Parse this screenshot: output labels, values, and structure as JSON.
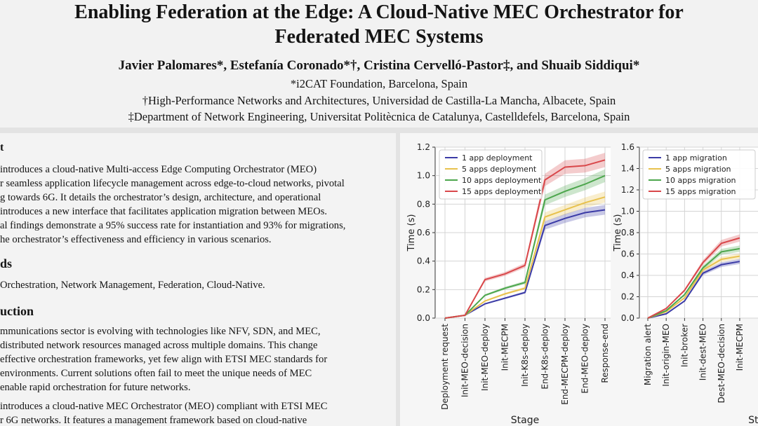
{
  "header": {
    "title_line1": "Enabling Federation at the Edge: A Cloud-Native MEC Orchestrator for",
    "title_line2": "Federated MEC Systems",
    "authors": "Javier Palomares*, Estefanía Coronado*†, Cristina Cervelló-Pastor‡, and Shuaib Siddiqui*",
    "affiliation1": "*i2CAT Foundation, Barcelona, Spain",
    "affiliation2": "†High-Performance Networks and Architectures, Universidad de Castilla-La Mancha, Albacete, Spain",
    "affiliation3": "‡Department of Network Engineering, Universitat Politècnica de Catalunya, Castelldefels, Barcelona, Spain"
  },
  "abstract": {
    "heading_fragment": "t",
    "lines": [
      "introduces a cloud-native Multi-access Edge Computing Orchestrator (MEO)",
      "r seamless application lifecycle management across edge-to-cloud networks, pivotal",
      "g towards 6G. It details the orchestrator’s design, architecture, and operational",
      "introduces a new interface that facilitates application migration between MEOs.",
      "al findings demonstrate a 95% success rate for instantiation and 93% for migrations,",
      "he orchestrator’s effectiveness and efficiency in various scenarios."
    ]
  },
  "keywords": {
    "heading_fragment": "ds",
    "text": "Orchestration, Network Management, Federation, Cloud-Native."
  },
  "introduction": {
    "heading_fragment": "uction",
    "lines": [
      "mmunications sector is evolving with technologies like NFV, SDN, and MEC,",
      "distributed network resources managed across multiple domains. This change",
      "effective orchestration frameworks, yet few align with ETSI MEC standards for",
      "environments. Current solutions often fail to meet the unique needs of MEC",
      "enable rapid orchestration for future networks."
    ],
    "lines2": [
      "introduces a cloud-native MEC Orchestrator (MEO) compliant with ETSI MEC",
      "r 6G networks. It features a management framework based on cloud-native"
    ]
  },
  "chart_data": [
    {
      "type": "line",
      "xlabel": "Stage",
      "ylabel": "Time (s)",
      "ylim": [
        0,
        1.2
      ],
      "yticks": [
        0.0,
        0.2,
        0.4,
        0.6,
        0.8,
        1.0,
        1.2
      ],
      "categories": [
        "Deployment request",
        "Init-MEO-decision",
        "Init-MEO-deploy",
        "Init-MECPM",
        "Init-K8s-deploy",
        "End-K8s-deploy",
        "End-MECPM-deploy",
        "End-MEO-deploy",
        "Response-end"
      ],
      "legend_position": "top-left",
      "series": [
        {
          "name": "1 app deployment",
          "color": "#3b3ba6",
          "values": [
            0.0,
            0.02,
            0.1,
            0.14,
            0.18,
            0.65,
            0.7,
            0.74,
            0.76
          ]
        },
        {
          "name": "5 apps deployment",
          "color": "#e8c14d",
          "values": [
            0.0,
            0.02,
            0.12,
            0.17,
            0.21,
            0.71,
            0.76,
            0.81,
            0.85
          ]
        },
        {
          "name": "10 apps deployment",
          "color": "#4ca64c",
          "values": [
            0.0,
            0.02,
            0.16,
            0.21,
            0.25,
            0.83,
            0.89,
            0.94,
            1.0
          ]
        },
        {
          "name": "15 apps deployment",
          "color": "#d9474a",
          "values": [
            0.0,
            0.02,
            0.27,
            0.31,
            0.37,
            0.97,
            1.06,
            1.07,
            1.11
          ]
        }
      ]
    },
    {
      "type": "line",
      "xlabel": "Stag",
      "ylabel": "Time (s)",
      "ylim": [
        0,
        1.6
      ],
      "yticks": [
        0.0,
        0.2,
        0.4,
        0.6,
        0.8,
        1.0,
        1.2,
        1.4,
        1.6
      ],
      "categories": [
        "Migration alert",
        "Init-origin-MEO",
        "Init-broker",
        "Init-dest-MEO",
        "Dest-MEO-decision",
        "Init-MECPM"
      ],
      "legend_position": "top-left",
      "series": [
        {
          "name": "1 app migration",
          "color": "#3b3ba6",
          "values": [
            0.0,
            0.04,
            0.16,
            0.42,
            0.5,
            0.53
          ]
        },
        {
          "name": "5 apps migration",
          "color": "#e8c14d",
          "values": [
            0.0,
            0.06,
            0.19,
            0.45,
            0.55,
            0.58
          ]
        },
        {
          "name": "10 apps migration",
          "color": "#4ca64c",
          "values": [
            0.0,
            0.07,
            0.22,
            0.47,
            0.62,
            0.65
          ]
        },
        {
          "name": "15 apps migration",
          "color": "#d9474a",
          "values": [
            0.0,
            0.09,
            0.26,
            0.52,
            0.7,
            0.75
          ]
        }
      ]
    }
  ]
}
